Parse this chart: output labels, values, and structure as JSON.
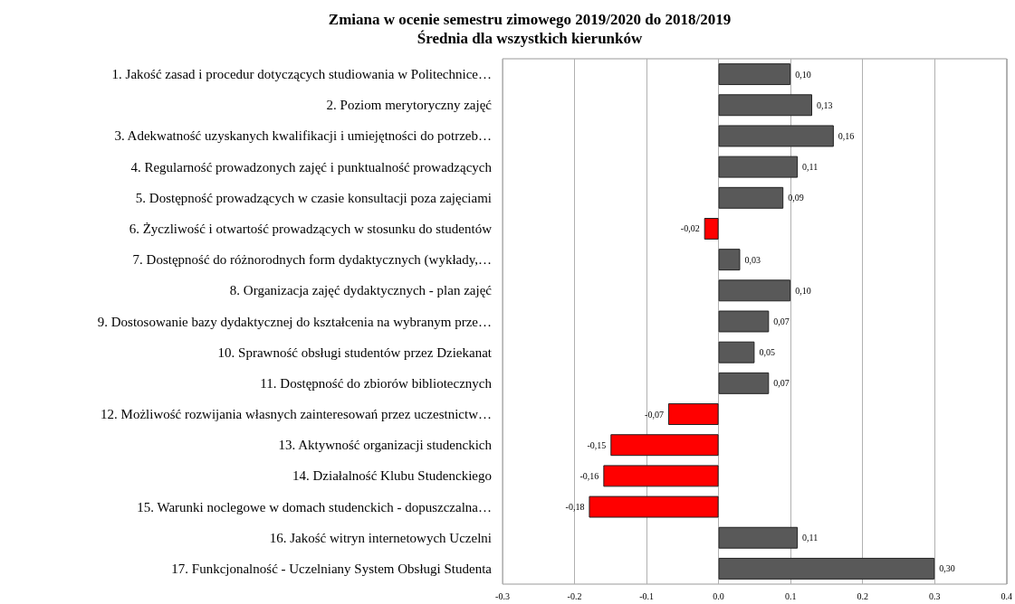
{
  "chart_data": {
    "type": "bar",
    "orientation": "horizontal",
    "title": "Zmiana w ocenie semestru zimowego 2019/2020 do 2018/2019",
    "subtitle": "Średnia dla wszystkich kierunków",
    "categories": [
      "1. Jakość zasad i procedur dotyczących studiowania w Politechnice…",
      "2. Poziom merytoryczny zajęć",
      "3. Adekwatność uzyskanych kwalifikacji i umiejętności do potrzeb…",
      "4. Regularność prowadzonych zajęć i punktualność prowadzących",
      "5. Dostępność prowadzących w czasie konsultacji poza zajęciami",
      "6. Życzliwość i otwartość prowadzących w stosunku do studentów",
      "7. Dostępność do różnorodnych form dydaktycznych (wykłady,…",
      "8. Organizacja zajęć dydaktycznych - plan zajęć",
      "9. Dostosowanie bazy dydaktycznej do kształcenia na wybranym prze…",
      "10. Sprawność obsługi studentów przez Dziekanat",
      "11. Dostępność do zbiorów bibliotecznych",
      "12. Możliwość rozwijania własnych zainteresowań przez uczestnictw…",
      "13. Aktywność organizacji studenckich",
      "14. Działalność Klubu Studenckiego",
      "15. Warunki noclegowe w domach studenckich - dopuszczalna…",
      "16. Jakość witryn internetowych Uczelni",
      "17. Funkcjonalność - Uczelniany System Obsługi Studenta"
    ],
    "values": [
      0.1,
      0.13,
      0.16,
      0.11,
      0.09,
      -0.02,
      0.03,
      0.1,
      0.07,
      0.05,
      0.07,
      -0.07,
      -0.15,
      -0.16,
      -0.18,
      0.11,
      0.3
    ],
    "value_labels": [
      "0,10",
      "0,13",
      "0,16",
      "0,11",
      "0,09",
      "-0,02",
      "0,03",
      "0,10",
      "0,07",
      "0,05",
      "0,07",
      "-0,07",
      "-0,15",
      "-0,16",
      "-0,18",
      "0,11",
      "0,30"
    ],
    "colors": [
      "#595959",
      "#595959",
      "#595959",
      "#595959",
      "#595959",
      "#ff0000",
      "#595959",
      "#595959",
      "#595959",
      "#595959",
      "#595959",
      "#ff0000",
      "#ff0000",
      "#ff0000",
      "#ff0000",
      "#595959",
      "#595959"
    ],
    "xlim": [
      -0.3,
      0.4
    ],
    "xticks": [
      -0.3,
      -0.2,
      -0.1,
      {
        "value": 0,
        "label": "0.0"
      },
      0.1,
      0.2,
      0.3,
      0.4
    ],
    "grid": "x"
  }
}
